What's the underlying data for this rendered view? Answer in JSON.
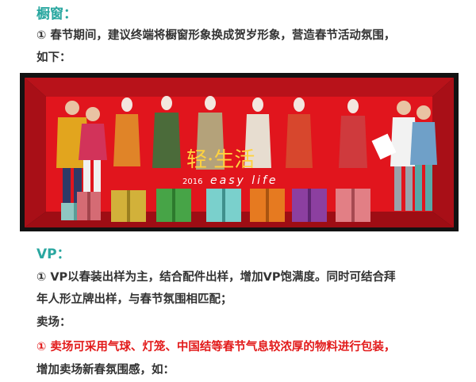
{
  "section1": {
    "heading": "橱窗：",
    "line1": "① 春节期间，建议终端将橱窗形象换成贺岁形象，营造春节活动氛围，",
    "line2": "如下："
  },
  "photo": {
    "logo_main": "轻·生活",
    "logo_year": "2016",
    "logo_sub": "easy life",
    "colors": {
      "back": "#e1151d",
      "floor": "#b90f17",
      "frame": "#121212"
    }
  },
  "section2": {
    "heading": "VP：",
    "line1": "① VP以春装出样为主，结合配件出样，增加VP饱满度。同时可结合拜",
    "line2": "年人形立牌出样，与春节氛围相匹配；",
    "sub_heading": "卖场：",
    "red_line1": "① 卖场可采用气球、灯笼、中国结等春节气息较浓厚的物料进行包装，",
    "line3": "增加卖场新春氛围感，如："
  }
}
